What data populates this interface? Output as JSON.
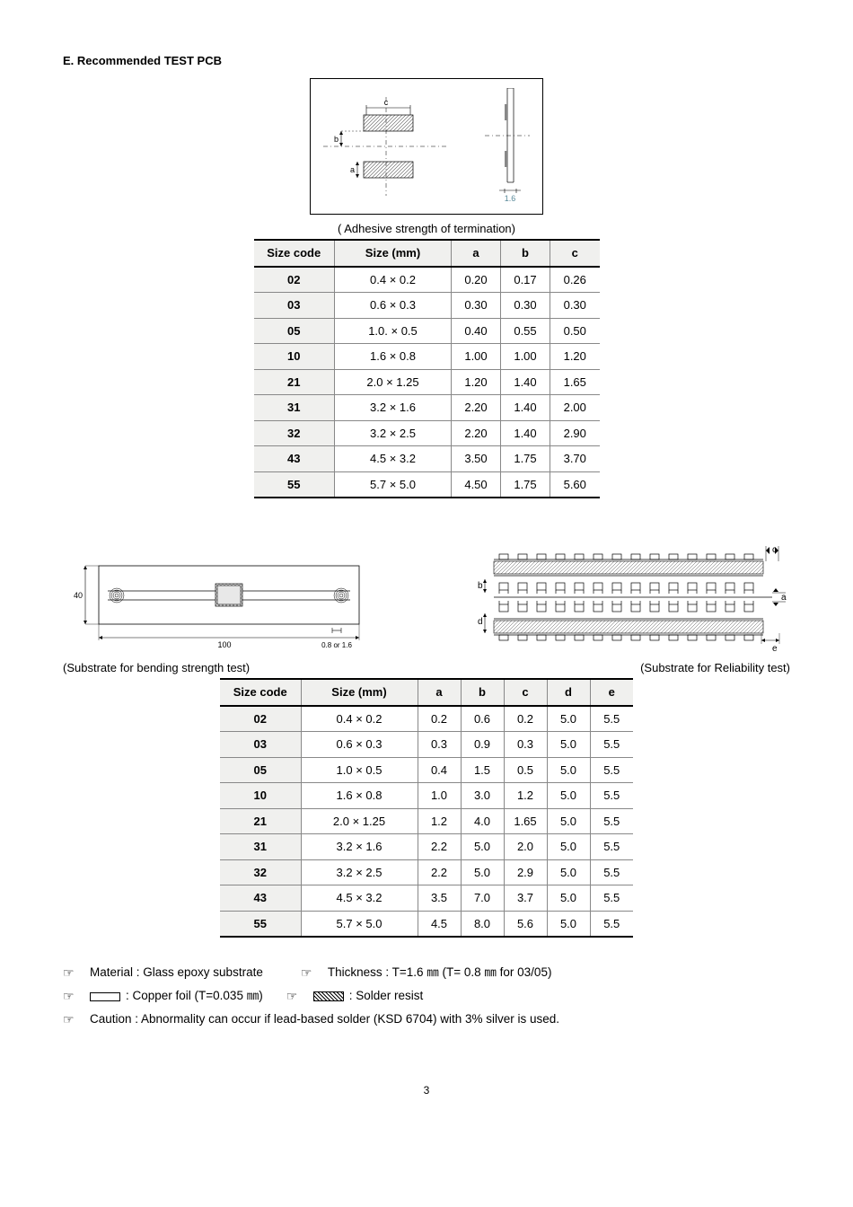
{
  "section_title": "E. Recommended TEST PCB",
  "caption1": "( Adhesive strength of termination)",
  "diag1_thickness_label": "1.6",
  "diag1_dim_labels": {
    "a": "a",
    "b": "b",
    "c": "c"
  },
  "table1": {
    "headers": [
      "Size code",
      "Size (mm)",
      "a",
      "b",
      "c"
    ],
    "rows": [
      [
        "02",
        "0.4 × 0.2",
        "0.20",
        "0.17",
        "0.26"
      ],
      [
        "03",
        "0.6 × 0.3",
        "0.30",
        "0.30",
        "0.30"
      ],
      [
        "05",
        "1.0. × 0.5",
        "0.40",
        "0.55",
        "0.50"
      ],
      [
        "10",
        "1.6 × 0.8",
        "1.00",
        "1.00",
        "1.20"
      ],
      [
        "21",
        "2.0 × 1.25",
        "1.20",
        "1.40",
        "1.65"
      ],
      [
        "31",
        "3.2 × 1.6",
        "2.20",
        "1.40",
        "2.00"
      ],
      [
        "32",
        "3.2 × 2.5",
        "2.20",
        "1.40",
        "2.90"
      ],
      [
        "43",
        "4.5 × 3.2",
        "3.50",
        "1.75",
        "3.70"
      ],
      [
        "55",
        "5.7 × 5.0",
        "4.50",
        "1.75",
        "5.60"
      ]
    ],
    "col_widths": [
      "90px",
      "130px",
      "55px",
      "55px",
      "55px"
    ]
  },
  "bend_label": "(Substrate for bending strength test)",
  "rel_label": "(Substrate for Reliability test)",
  "bend_dims": {
    "h": "40",
    "w": "100",
    "t": "0.8 or 1.6"
  },
  "rel_dims": {
    "a": "a",
    "b": "b",
    "c": "c",
    "d": "d",
    "e": "e"
  },
  "table2": {
    "headers": [
      "Size code",
      "Size (mm)",
      "a",
      "b",
      "c",
      "d",
      "e"
    ],
    "rows": [
      [
        "02",
        "0.4 × 0.2",
        "0.2",
        "0.6",
        "0.2",
        "5.0",
        "5.5"
      ],
      [
        "03",
        "0.6 × 0.3",
        "0.3",
        "0.9",
        "0.3",
        "5.0",
        "5.5"
      ],
      [
        "05",
        "1.0 × 0.5",
        "0.4",
        "1.5",
        "0.5",
        "5.0",
        "5.5"
      ],
      [
        "10",
        "1.6 × 0.8",
        "1.0",
        "3.0",
        "1.2",
        "5.0",
        "5.5"
      ],
      [
        "21",
        "2.0 × 1.25",
        "1.2",
        "4.0",
        "1.65",
        "5.0",
        "5.5"
      ],
      [
        "31",
        "3.2 × 1.6",
        "2.2",
        "5.0",
        "2.0",
        "5.0",
        "5.5"
      ],
      [
        "32",
        "3.2 × 2.5",
        "2.2",
        "5.0",
        "2.9",
        "5.0",
        "5.5"
      ],
      [
        "43",
        "4.5 × 3.2",
        "3.5",
        "7.0",
        "3.7",
        "5.0",
        "5.5"
      ],
      [
        "55",
        "5.7 × 5.0",
        "4.5",
        "8.0",
        "5.6",
        "5.0",
        "5.5"
      ]
    ],
    "col_widths": [
      "90px",
      "130px",
      "48px",
      "48px",
      "48px",
      "48px",
      "48px"
    ]
  },
  "notes": {
    "material": "Material : Glass epoxy substrate",
    "thickness": "Thickness : T=1.6 ㎜ (T= 0.8 ㎜ for 03/05)",
    "copper": " : Copper foil (T=0.035 ㎜)",
    "solder": " : Solder resist",
    "caution": "Caution : Abnormality can occur if lead-based solder (KSD 6704) with 3% silver is used."
  },
  "page_number": "3",
  "colors": {
    "text": "#000000",
    "bg": "#ffffff",
    "header_bg": "#f0f0ee",
    "border_heavy": "#000000",
    "border_light": "#888888",
    "diagram_gray": "#bcbcbc"
  }
}
